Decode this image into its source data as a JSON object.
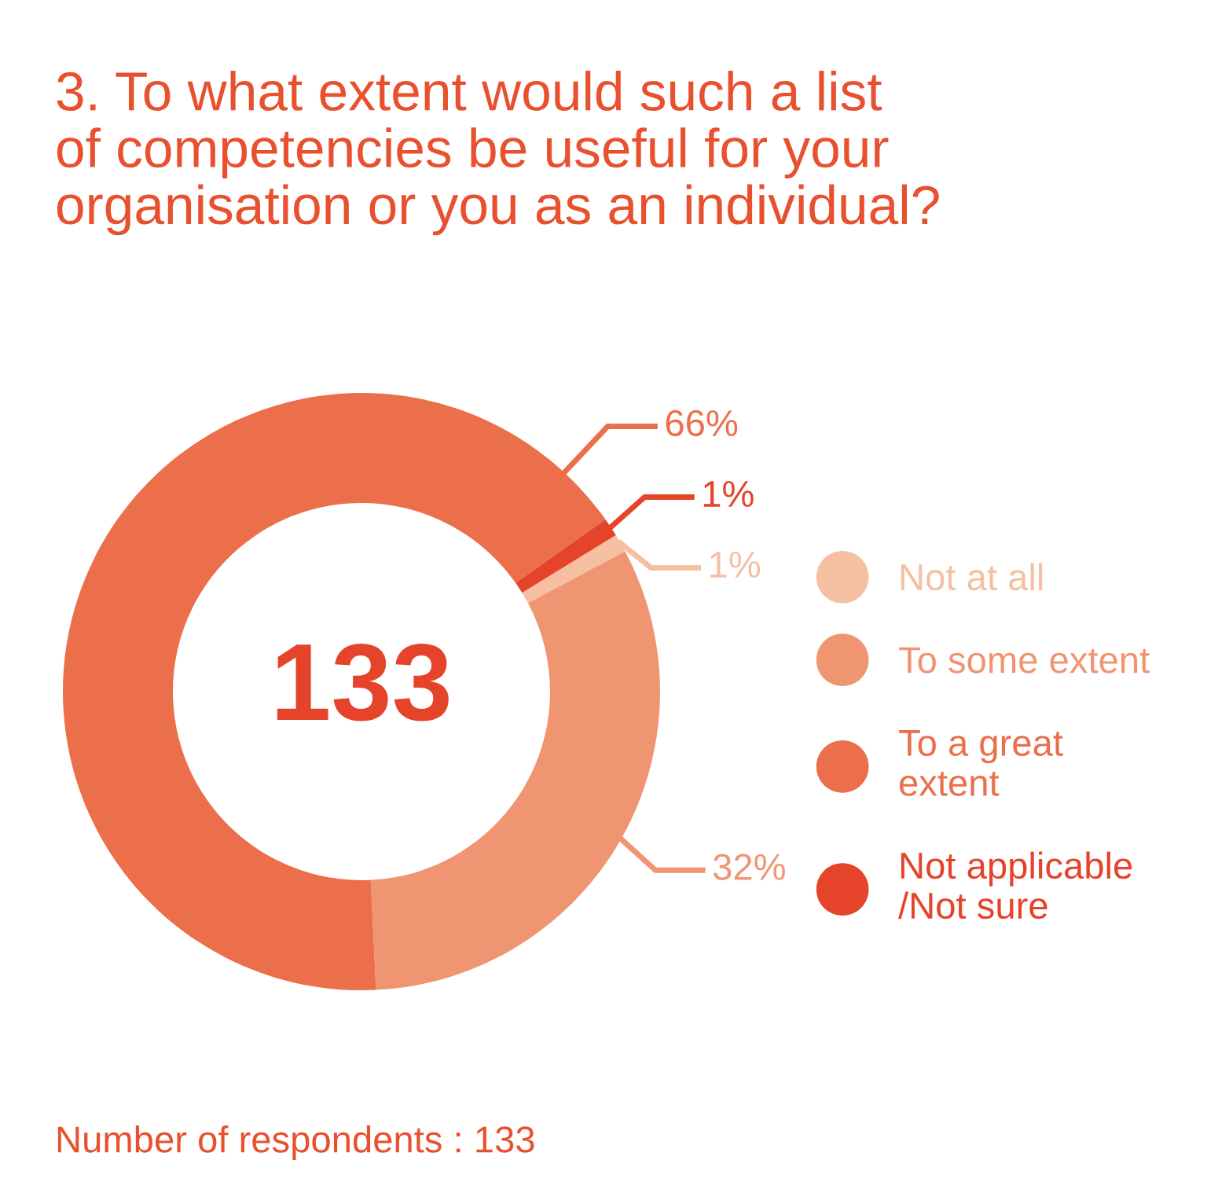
{
  "chart_data": {
    "type": "donut",
    "title": "3. To what extent would such a list\nof competencies be useful for your\norganisation or you as an individual?",
    "categories": [
      "Not at all",
      "To some extent",
      "To a great\nextent",
      "Not applicable\n/Not sure"
    ],
    "values": [
      1,
      32,
      66,
      1
    ],
    "colors": [
      "#f5bfa2",
      "#f09572",
      "#eb6f4a",
      "#e5432a"
    ],
    "value_labels": [
      "1%",
      "32%",
      "66%",
      "1%"
    ],
    "legend": "right",
    "annotations": [
      "133",
      "Number of respondents : 133"
    ]
  }
}
